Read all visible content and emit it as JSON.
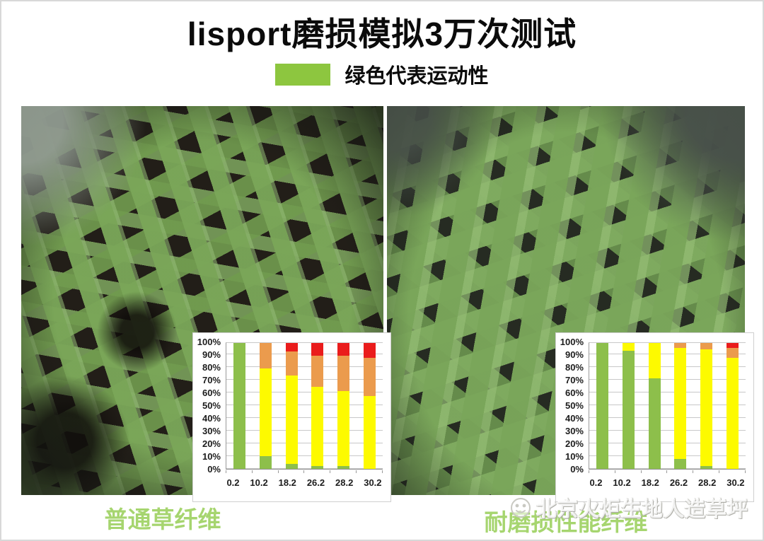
{
  "page": {
    "title": "lisport磨损模拟3万次测试",
    "legend_label": "绿色代表运动性",
    "left_caption": "普通草纤维",
    "right_caption": "耐磨损性能纤维",
    "watermark_text": "北京火炬生地人造草坪"
  },
  "colors": {
    "legend_green": "#8dc63f",
    "caption_green": "#a6d56f",
    "bar_green": "#8dbf4b",
    "bar_yellow": "#fdfa00",
    "bar_orange": "#eb9b4d",
    "bar_red": "#ea1c1c"
  },
  "chart_data": [
    {
      "type": "bar",
      "stacked": true,
      "percent_stacked": true,
      "title": "普通草纤维 磨损测试",
      "xlabel": "",
      "ylabel": "",
      "ylim": [
        0,
        100
      ],
      "grid": true,
      "legend_position": "none",
      "categories": [
        "0.2",
        "10.2",
        "18.2",
        "26.2",
        "28.2",
        "30.2"
      ],
      "y_ticks": [
        "100%",
        "90%",
        "80%",
        "70%",
        "60%",
        "50%",
        "40%",
        "30%",
        "20%",
        "10%",
        "0%"
      ],
      "series": [
        {
          "name": "green",
          "color": "#8dbf4b",
          "values": [
            100,
            10,
            4,
            2,
            2,
            0
          ]
        },
        {
          "name": "yellow",
          "color": "#fdfa00",
          "values": [
            0,
            70,
            70,
            63,
            60,
            58
          ]
        },
        {
          "name": "orange",
          "color": "#eb9b4d",
          "values": [
            0,
            20,
            19,
            25,
            28,
            30
          ]
        },
        {
          "name": "red",
          "color": "#ea1c1c",
          "values": [
            0,
            0,
            7,
            10,
            10,
            12
          ]
        }
      ]
    },
    {
      "type": "bar",
      "stacked": true,
      "percent_stacked": true,
      "title": "耐磨损性能纤维 磨损测试",
      "xlabel": "",
      "ylabel": "",
      "ylim": [
        0,
        100
      ],
      "grid": true,
      "legend_position": "none",
      "categories": [
        "0.2",
        "10.2",
        "18.2",
        "26.2",
        "28.2",
        "30.2"
      ],
      "y_ticks": [
        "100%",
        "90%",
        "80%",
        "70%",
        "60%",
        "50%",
        "40%",
        "30%",
        "20%",
        "10%",
        "0%"
      ],
      "series": [
        {
          "name": "green",
          "color": "#8dbf4b",
          "values": [
            100,
            94,
            72,
            8,
            2,
            0
          ]
        },
        {
          "name": "yellow",
          "color": "#fdfa00",
          "values": [
            0,
            6,
            28,
            88,
            93,
            88
          ]
        },
        {
          "name": "orange",
          "color": "#eb9b4d",
          "values": [
            0,
            0,
            0,
            4,
            5,
            8
          ]
        },
        {
          "name": "red",
          "color": "#ea1c1c",
          "values": [
            0,
            0,
            0,
            0,
            0,
            4
          ]
        }
      ]
    }
  ]
}
